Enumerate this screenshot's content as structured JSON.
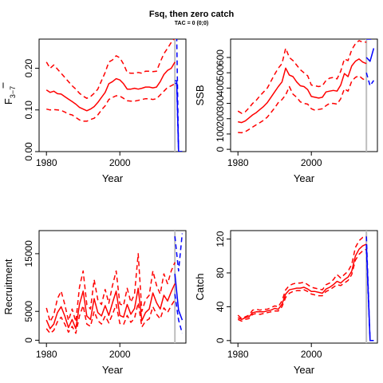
{
  "figure": {
    "title": "Fsq, then zero catch",
    "subtitle": "TAC = 0 (0;0)"
  },
  "colors": {
    "historical": "#ff0000",
    "projection": "#0000ff",
    "reference_line": "#bebebe",
    "axis": "#000000"
  },
  "chart_data": [
    {
      "type": "line",
      "panel": "top-left",
      "xlabel": "Year",
      "ylabel": "F̅ 3–7",
      "ylabel_main": "F",
      "ylabel_sub": "3−7",
      "xlim": [
        1978,
        2018
      ],
      "ylim": [
        0,
        0.27
      ],
      "xticks": [
        "1980",
        "2000"
      ],
      "xtick_values": [
        1980,
        2000
      ],
      "yticks": [
        "0.00",
        "0.10",
        "0.20"
      ],
      "ytick_values": [
        0,
        0.1,
        0.2
      ],
      "vline_year": 2015,
      "historical": {
        "x": [
          1980,
          1981,
          1982,
          1983,
          1984,
          1985,
          1986,
          1987,
          1988,
          1989,
          1990,
          1991,
          1992,
          1993,
          1994,
          1995,
          1996,
          1997,
          1998,
          1999,
          2000,
          2001,
          2002,
          2003,
          2004,
          2005,
          2006,
          2007,
          2008,
          2009,
          2010,
          2011,
          2012,
          2013,
          2014,
          2015
        ],
        "median": [
          0.148,
          0.142,
          0.145,
          0.139,
          0.138,
          0.132,
          0.126,
          0.12,
          0.114,
          0.106,
          0.102,
          0.098,
          0.102,
          0.108,
          0.118,
          0.13,
          0.142,
          0.163,
          0.168,
          0.175,
          0.172,
          0.163,
          0.15,
          0.15,
          0.152,
          0.15,
          0.152,
          0.155,
          0.155,
          0.153,
          0.155,
          0.168,
          0.185,
          0.195,
          0.2,
          0.215
        ],
        "lower": [
          0.102,
          0.1,
          0.101,
          0.1,
          0.099,
          0.095,
          0.09,
          0.088,
          0.082,
          0.076,
          0.073,
          0.073,
          0.077,
          0.08,
          0.088,
          0.1,
          0.11,
          0.125,
          0.13,
          0.134,
          0.133,
          0.128,
          0.122,
          0.121,
          0.121,
          0.123,
          0.125,
          0.127,
          0.127,
          0.125,
          0.127,
          0.136,
          0.145,
          0.154,
          0.158,
          0.163
        ],
        "upper": [
          0.215,
          0.2,
          0.208,
          0.198,
          0.188,
          0.178,
          0.168,
          0.158,
          0.15,
          0.14,
          0.133,
          0.128,
          0.132,
          0.14,
          0.15,
          0.17,
          0.19,
          0.215,
          0.22,
          0.23,
          0.225,
          0.21,
          0.19,
          0.188,
          0.188,
          0.19,
          0.188,
          0.193,
          0.193,
          0.192,
          0.193,
          0.215,
          0.235,
          0.248,
          0.262,
          0.272
        ]
      },
      "projection": {
        "x": [
          2015,
          2015.5,
          2016,
          2017
        ],
        "median": [
          0.17,
          0.17,
          0.0,
          0.0
        ],
        "lower": [
          0.164,
          0.164,
          0.0,
          0.0
        ],
        "upper": [
          0.272,
          0.272,
          0.0,
          0.0
        ]
      }
    },
    {
      "type": "line",
      "panel": "top-right",
      "xlabel": "Year",
      "ylabel": "SSB",
      "xlim": [
        1978,
        2018
      ],
      "ylim": [
        -15,
        720
      ],
      "xticks": [
        "1980",
        "2000"
      ],
      "xtick_values": [
        1980,
        2000
      ],
      "yticks": [
        "0",
        "100",
        "200",
        "300",
        "400",
        "500",
        "600"
      ],
      "ytick_values": [
        0,
        100,
        200,
        300,
        400,
        500,
        600
      ],
      "vline_year": 2015,
      "historical": {
        "x": [
          1980,
          1981,
          1982,
          1983,
          1984,
          1985,
          1986,
          1987,
          1988,
          1989,
          1990,
          1991,
          1992,
          1993,
          1994,
          1995,
          1996,
          1997,
          1998,
          1999,
          2000,
          2001,
          2002,
          2003,
          2004,
          2005,
          2006,
          2007,
          2008,
          2009,
          2010,
          2011,
          2012,
          2013,
          2014,
          2015
        ],
        "median": [
          180,
          175,
          185,
          205,
          225,
          240,
          260,
          280,
          305,
          340,
          375,
          410,
          440,
          530,
          485,
          475,
          440,
          415,
          410,
          390,
          345,
          340,
          335,
          340,
          375,
          380,
          385,
          380,
          420,
          495,
          475,
          545,
          575,
          590,
          570,
          560
        ],
        "lower": [
          110,
          108,
          115,
          130,
          145,
          160,
          175,
          190,
          210,
          240,
          270,
          305,
          325,
          355,
          410,
          360,
          340,
          310,
          300,
          295,
          265,
          255,
          260,
          265,
          285,
          300,
          300,
          295,
          330,
          395,
          380,
          445,
          470,
          480,
          460,
          450
        ],
        "upper": [
          250,
          235,
          245,
          270,
          300,
          320,
          350,
          375,
          400,
          445,
          490,
          530,
          560,
          660,
          600,
          580,
          550,
          520,
          500,
          480,
          420,
          415,
          410,
          415,
          450,
          465,
          470,
          460,
          510,
          590,
          580,
          650,
          690,
          710,
          700,
          700
        ]
      },
      "projection": {
        "x": [
          2015,
          2016,
          2017
        ],
        "median": [
          600,
          575,
          660
        ],
        "lower": [
          500,
          415,
          450
        ],
        "upper": [
          720,
          720,
          720
        ]
      }
    },
    {
      "type": "line",
      "panel": "bottom-left",
      "xlabel": "Year",
      "ylabel": "Recruitment",
      "xlim": [
        1978,
        2018
      ],
      "ylim": [
        -500,
        19000
      ],
      "xticks": [
        "1980",
        "2000"
      ],
      "xtick_values": [
        1980,
        2000
      ],
      "yticks": [
        "0",
        "5000",
        "15000"
      ],
      "ytick_values": [
        0,
        5000,
        15000
      ],
      "vline_year": 2015,
      "historical": {
        "x": [
          1980,
          1981,
          1982,
          1983,
          1984,
          1985,
          1986,
          1987,
          1988,
          1989,
          1990,
          1991,
          1992,
          1993,
          1994,
          1995,
          1996,
          1997,
          1998,
          1999,
          2000,
          2001,
          2002,
          2003,
          2004,
          2005,
          2006,
          2007,
          2008,
          2009,
          2010,
          2011,
          2012,
          2013,
          2014,
          2015
        ],
        "median": [
          3500,
          2000,
          2800,
          4800,
          5800,
          4200,
          2200,
          3600,
          2000,
          6200,
          8500,
          4200,
          3600,
          7200,
          4800,
          4200,
          6000,
          4300,
          6500,
          8500,
          4300,
          4000,
          6200,
          4500,
          5500,
          9000,
          3400,
          4800,
          5400,
          8200,
          6500,
          5400,
          7800,
          6800,
          8400,
          9800
        ],
        "lower": [
          2000,
          1200,
          1700,
          3200,
          4000,
          2800,
          1400,
          2400,
          1200,
          4200,
          6000,
          2800,
          2400,
          5000,
          3400,
          2800,
          4200,
          3000,
          4500,
          6200,
          2900,
          2700,
          4300,
          3100,
          3800,
          6500,
          2300,
          3300,
          3700,
          5800,
          4500,
          3700,
          5600,
          4800,
          6000,
          7000
        ],
        "upper": [
          5600,
          3200,
          4400,
          7200,
          8500,
          6200,
          3400,
          5400,
          3200,
          9200,
          12000,
          6200,
          5400,
          10500,
          7000,
          6200,
          8800,
          6400,
          9500,
          12000,
          6300,
          6000,
          9000,
          6600,
          8000,
          15000,
          5000,
          7000,
          7800,
          12000,
          9500,
          8000,
          11500,
          9800,
          12000,
          13500
        ]
      },
      "projection": {
        "x": [
          2015,
          2016,
          2017
        ],
        "median": [
          11500,
          5200,
          3500
        ],
        "lower": [
          8000,
          3500,
          1200
        ],
        "upper": [
          18000,
          12000,
          18500
        ]
      }
    },
    {
      "type": "line",
      "panel": "bottom-right",
      "xlabel": "Year",
      "ylabel": "Catch",
      "xlim": [
        1978,
        2018
      ],
      "ylim": [
        -3,
        130
      ],
      "xticks": [
        "1980",
        "2000"
      ],
      "xtick_values": [
        1980,
        2000
      ],
      "yticks": [
        "0",
        "40",
        "80",
        "120"
      ],
      "ytick_values": [
        0,
        40,
        80,
        120
      ],
      "vline_year": 2015,
      "historical": {
        "x": [
          1980,
          1981,
          1982,
          1983,
          1984,
          1985,
          1986,
          1987,
          1988,
          1989,
          1990,
          1991,
          1992,
          1993,
          1994,
          1995,
          1996,
          1997,
          1998,
          1999,
          2000,
          2001,
          2002,
          2003,
          2004,
          2005,
          2006,
          2007,
          2008,
          2009,
          2010,
          2011,
          2012,
          2013,
          2014,
          2015
        ],
        "median": [
          27,
          25,
          27,
          28,
          33,
          34,
          34,
          34,
          35,
          36,
          38,
          37,
          43,
          55,
          60,
          61,
          62,
          62,
          63,
          61,
          58,
          58,
          57,
          56,
          61,
          63,
          66,
          70,
          68,
          72,
          75,
          82,
          100,
          108,
          112,
          114
        ],
        "lower": [
          25,
          23,
          25,
          26,
          31,
          32,
          31,
          32,
          33,
          34,
          35,
          35,
          40,
          51,
          56,
          58,
          59,
          59,
          60,
          58,
          55,
          54,
          53,
          53,
          58,
          60,
          63,
          66,
          65,
          68,
          71,
          78,
          95,
          102,
          106,
          108
        ],
        "upper": [
          30,
          26,
          28,
          30,
          36,
          37,
          36,
          37,
          37,
          39,
          41,
          40,
          47,
          60,
          65,
          67,
          68,
          68,
          69,
          66,
          63,
          62,
          61,
          60,
          66,
          68,
          72,
          78,
          74,
          78,
          82,
          90,
          110,
          118,
          122,
          123
        ]
      },
      "projection": {
        "x": [
          2015,
          2016,
          2017
        ],
        "median": [
          114,
          0,
          0
        ],
        "lower": [
          108,
          0,
          0
        ],
        "upper": [
          123,
          0,
          0
        ]
      }
    }
  ]
}
